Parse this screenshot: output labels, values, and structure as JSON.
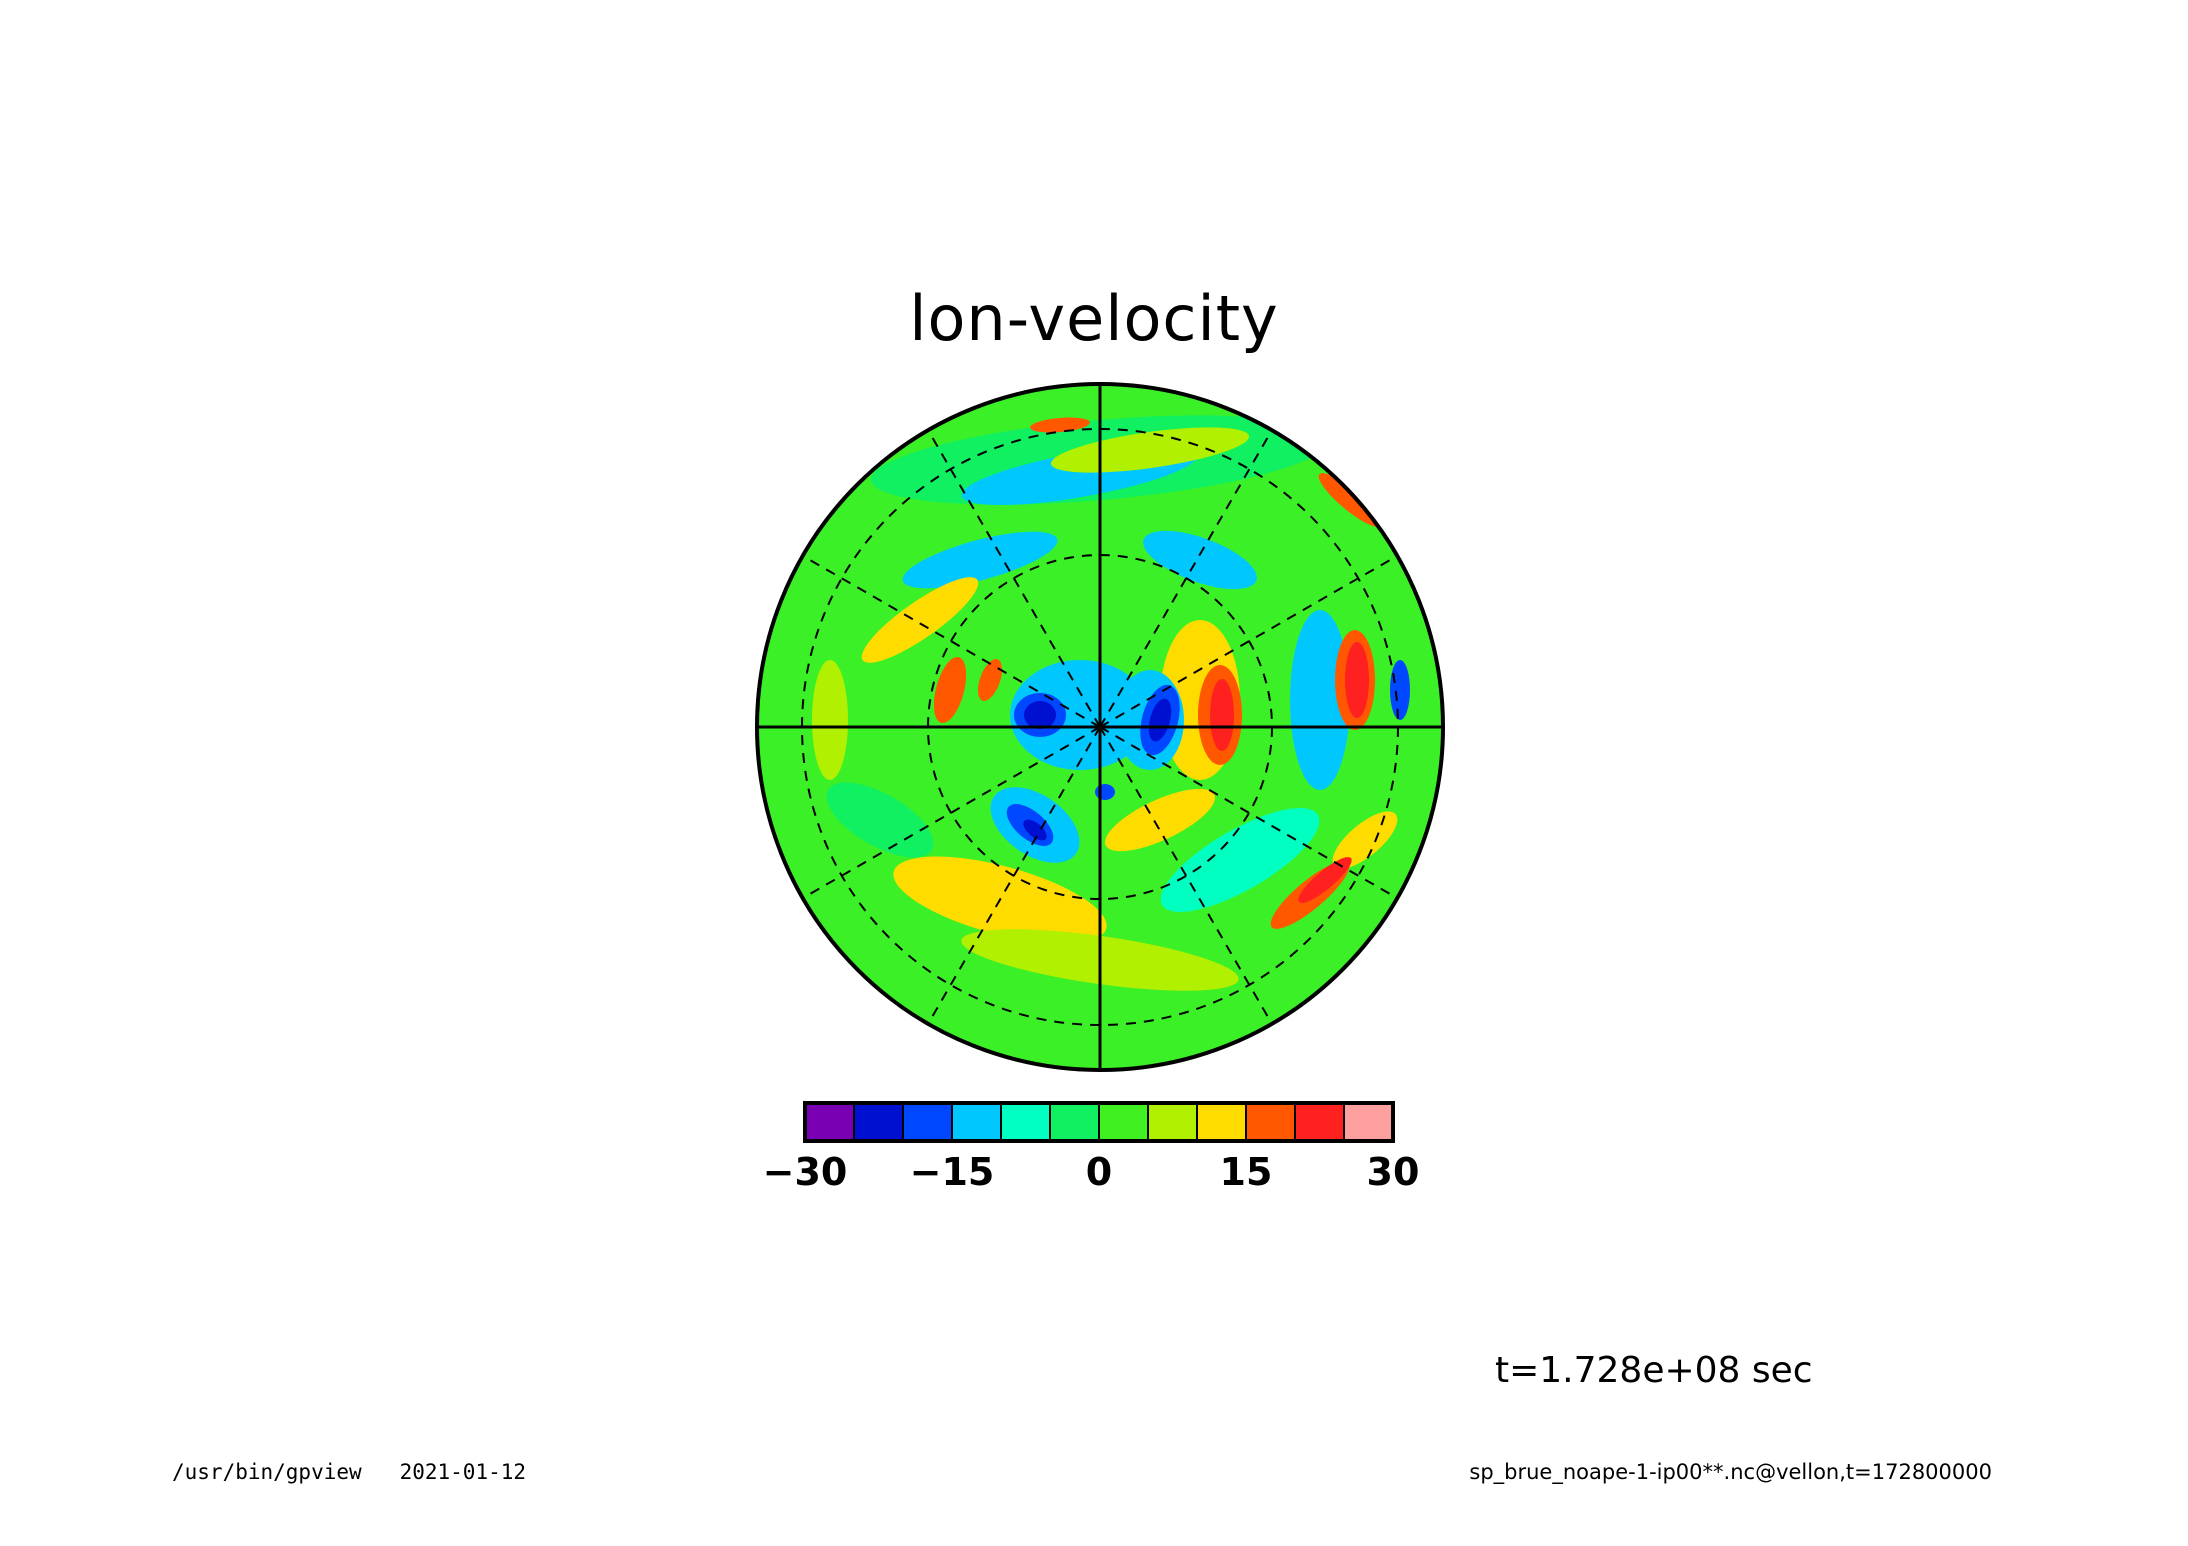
{
  "title": "lon-velocity",
  "time_label": "t=1.728e+08 sec",
  "footer": {
    "program": "/usr/bin/gpview",
    "date": "2021-01-12",
    "source": "sp_brue_noape-1-ip00**.nc@vellon,t=172800000"
  },
  "projection": "polar stereographic",
  "colorbar": {
    "levels": [
      -30,
      -25,
      -20,
      -15,
      -10,
      -5,
      0,
      5,
      10,
      15,
      20,
      25,
      30
    ],
    "colors": [
      "#7a00b4",
      "#0010d0",
      "#0048ff",
      "#00c8ff",
      "#00ffc0",
      "#10f060",
      "#40f020",
      "#b0f000",
      "#ffdc00",
      "#ff5800",
      "#ff2020",
      "#ffa0a0"
    ],
    "tick_labels": [
      "−30",
      "−15",
      "0",
      "15",
      "30"
    ],
    "tick_values": [
      -30,
      -15,
      0,
      15,
      30
    ]
  }
}
